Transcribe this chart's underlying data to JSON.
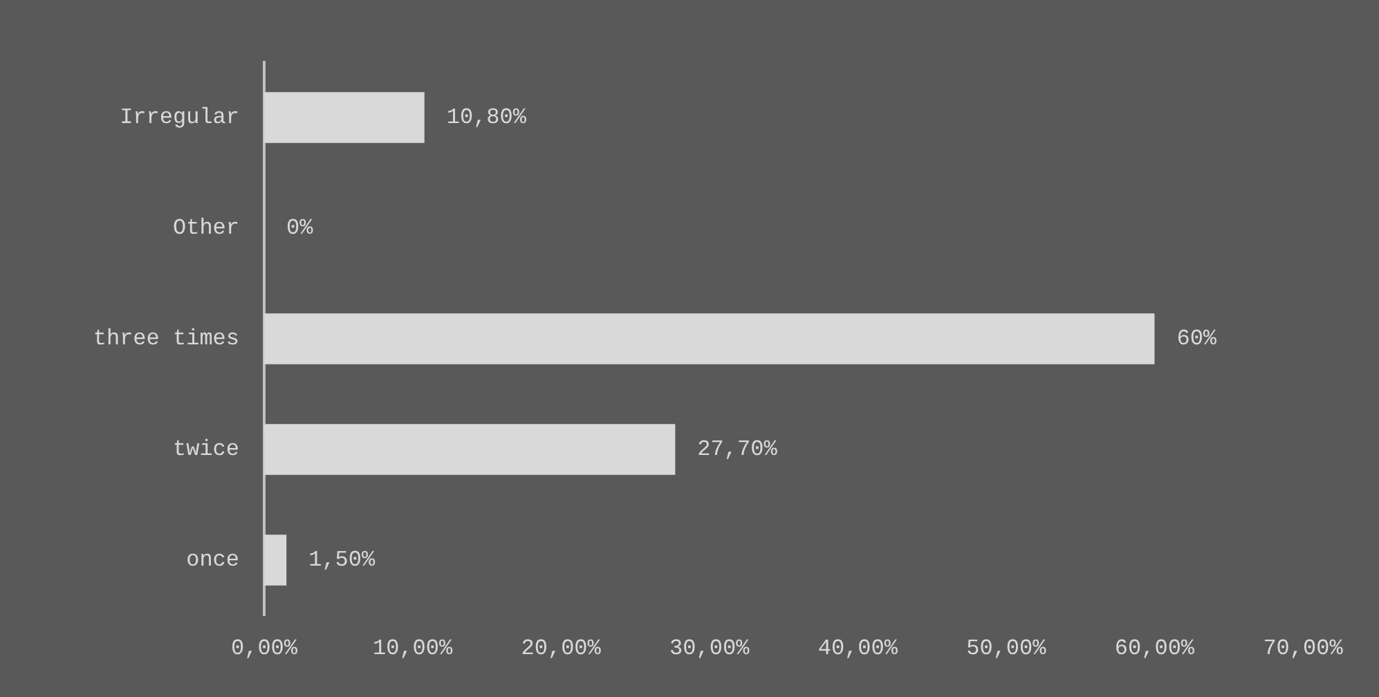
{
  "chart_data": {
    "type": "bar",
    "orientation": "horizontal",
    "categories": [
      "Irregular",
      "Other",
      "three times",
      "twice",
      "once"
    ],
    "values": [
      10.8,
      0,
      60,
      27.7,
      1.5
    ],
    "color": "#d9d9d9",
    "value_labels": [
      "10,80%",
      "0%",
      "60%",
      "27,70%",
      "1,50%"
    ],
    "xlim": [
      0,
      70
    ],
    "xticks": [
      {
        "value": 0,
        "label": "0,00%"
      },
      {
        "value": 10,
        "label": "10,00%"
      },
      {
        "value": 20,
        "label": "20,00%"
      },
      {
        "value": 30,
        "label": "30,00%"
      },
      {
        "value": 40,
        "label": "40,00%"
      },
      {
        "value": 50,
        "label": "50,00%"
      },
      {
        "value": 60,
        "label": "60,00%"
      },
      {
        "value": 70,
        "label": "70,00%"
      }
    ],
    "grid": false
  }
}
